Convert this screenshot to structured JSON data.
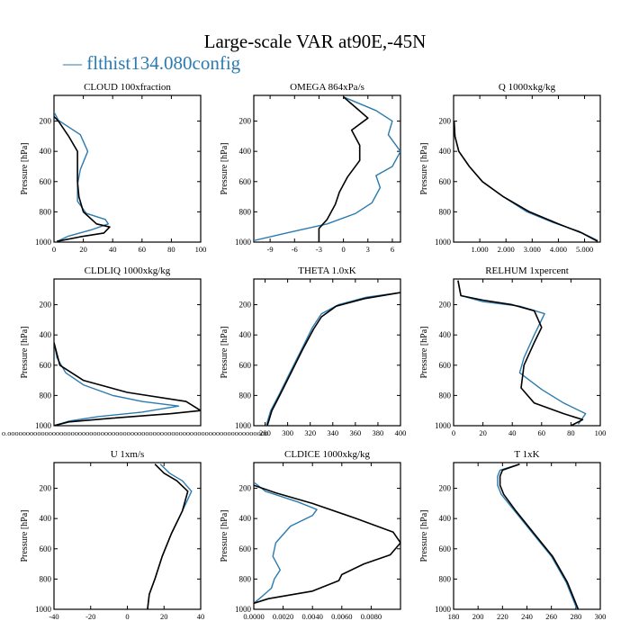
{
  "title": "Large-scale VAR at90E,-45N",
  "legend": {
    "marker": "—",
    "label": "flthist134.080config"
  },
  "colors": {
    "config": "#2b7bb0",
    "control": "#000000"
  },
  "chart_data": [
    {
      "type": "line",
      "title": "CLOUD  100xfraction",
      "ylabel": "Pressure [hPa]",
      "xlim": [
        0,
        100
      ],
      "ylim": [
        1000,
        30
      ],
      "xticks": [
        "0",
        "20",
        "40",
        "60",
        "80",
        "100"
      ],
      "xtick_values": [
        0,
        20,
        40,
        60,
        80,
        100
      ],
      "yticks": [
        "200",
        "400",
        "600",
        "800",
        "1000"
      ],
      "ytick_values": [
        200,
        400,
        600,
        800,
        1000
      ],
      "series": [
        {
          "key": "config",
          "name": "flthist134.080config",
          "x": [
            0,
            3,
            18,
            23,
            18,
            16,
            16,
            22,
            35,
            37,
            25,
            10,
            2
          ],
          "y": [
            140,
            195,
            290,
            400,
            520,
            620,
            730,
            810,
            850,
            880,
            920,
            960,
            995
          ]
        },
        {
          "key": "control",
          "x": [
            0,
            3,
            10,
            16,
            16,
            16,
            17,
            20,
            29,
            38,
            34,
            18,
            2
          ],
          "y": [
            170,
            200,
            300,
            400,
            500,
            600,
            700,
            800,
            880,
            900,
            940,
            965,
            995
          ]
        }
      ]
    },
    {
      "type": "line",
      "title": "OMEGA  864xPa/s",
      "ylabel": "Pressure [hPa]",
      "xlim": [
        -11,
        7
      ],
      "ylim": [
        1000,
        30
      ],
      "xticks": [
        "-9",
        "-6",
        "-3",
        "0",
        "3",
        "6"
      ],
      "xtick_values": [
        -9,
        -6,
        -3,
        0,
        3,
        6
      ],
      "yticks": [
        "200",
        "400",
        "600",
        "800",
        "1000"
      ],
      "ytick_values": [
        200,
        400,
        600,
        800,
        1000
      ],
      "series": [
        {
          "key": "config",
          "name": "flthist134.080config",
          "x": [
            0,
            4,
            6,
            5.5,
            7,
            6,
            4,
            4.5,
            3.5,
            1.5,
            -2,
            -7,
            -11
          ],
          "y": [
            40,
            130,
            200,
            290,
            400,
            500,
            560,
            640,
            740,
            810,
            880,
            940,
            990
          ]
        },
        {
          "key": "control",
          "x": [
            0,
            1.5,
            3,
            1,
            2,
            2,
            0.5,
            -0.5,
            -1,
            -2,
            -3,
            -3,
            -3
          ],
          "y": [
            40,
            110,
            180,
            260,
            360,
            460,
            570,
            670,
            750,
            850,
            910,
            960,
            1000
          ]
        }
      ]
    },
    {
      "type": "line",
      "title": "Q  1000xkg/kg",
      "ylabel": "Pressure [hPa]",
      "xlim": [
        0,
        5.6
      ],
      "ylim": [
        1000,
        30
      ],
      "xticks": [
        "1.000",
        "2.000",
        "3.000",
        "4.000",
        "5.000"
      ],
      "xtick_values": [
        1,
        2,
        3,
        4,
        5
      ],
      "yticks": [
        "200",
        "400",
        "600",
        "800",
        "1000"
      ],
      "ytick_values": [
        200,
        400,
        600,
        800,
        1000
      ],
      "series": [
        {
          "key": "config",
          "name": "flthist134.080config",
          "x": [
            0.02,
            0.05,
            0.2,
            0.6,
            1.1,
            1.9,
            2.8,
            3.8,
            4.8,
            5.5
          ],
          "y": [
            200,
            300,
            400,
            500,
            600,
            700,
            800,
            870,
            930,
            990
          ]
        },
        {
          "key": "control",
          "x": [
            0.02,
            0.05,
            0.2,
            0.6,
            1.1,
            1.9,
            2.9,
            4.0,
            4.9,
            5.5
          ],
          "y": [
            200,
            300,
            400,
            500,
            600,
            700,
            800,
            880,
            940,
            995
          ]
        }
      ]
    },
    {
      "type": "line",
      "title": "CLDLIQ  1000xkg/kg",
      "ylabel": "Pressure [hPa]",
      "xlim": [
        0,
        0.1
      ],
      "ylim": [
        1000,
        30
      ],
      "xticks": [
        "0.0000000000000000000000000000000000000000000000000000000000000000000000"
      ],
      "xtick_values": [
        0
      ],
      "yticks": [
        "200",
        "400",
        "600",
        "800",
        "1000"
      ],
      "ytick_values": [
        200,
        400,
        600,
        800,
        1000
      ],
      "series": [
        {
          "key": "config",
          "name": "flthist134.080config",
          "x": [
            0,
            0.002,
            0.008,
            0.02,
            0.04,
            0.06,
            0.085,
            0.06,
            0.03,
            0.01,
            0
          ],
          "y": [
            450,
            550,
            650,
            730,
            800,
            840,
            870,
            910,
            940,
            970,
            1000
          ]
        },
        {
          "key": "control",
          "x": [
            0,
            0.004,
            0.02,
            0.05,
            0.09,
            0.1,
            0.08,
            0.04,
            0.01,
            0
          ],
          "y": [
            450,
            600,
            700,
            780,
            840,
            900,
            920,
            950,
            975,
            1000
          ]
        }
      ]
    },
    {
      "type": "line",
      "title": "THETA  1.0xK",
      "ylabel": "Pressure [hPa]",
      "xlim": [
        270,
        400
      ],
      "ylim": [
        1000,
        30
      ],
      "xticks": [
        "280",
        "300",
        "320",
        "340",
        "360",
        "380",
        "400"
      ],
      "xtick_values": [
        280,
        300,
        320,
        340,
        360,
        380,
        400
      ],
      "yticks": [
        "200",
        "400",
        "600",
        "800",
        "1000"
      ],
      "ytick_values": [
        200,
        400,
        600,
        800,
        1000
      ],
      "series": [
        {
          "key": "config",
          "name": "flthist134.080config",
          "x": [
            400,
            370,
            345,
            330,
            322,
            312,
            302,
            292,
            285,
            281
          ],
          "y": [
            120,
            150,
            200,
            260,
            350,
            500,
            650,
            800,
            900,
            1000
          ]
        },
        {
          "key": "control",
          "x": [
            400,
            368,
            343,
            330,
            323,
            313,
            303,
            293,
            286,
            282
          ],
          "y": [
            120,
            160,
            210,
            280,
            360,
            500,
            650,
            800,
            900,
            1000
          ]
        }
      ]
    },
    {
      "type": "line",
      "title": "RELHUM  1xpercent",
      "ylabel": "Pressure [hPa]",
      "xlim": [
        0,
        100
      ],
      "ylim": [
        1000,
        30
      ],
      "xticks": [
        "0",
        "20",
        "40",
        "60",
        "80",
        "100"
      ],
      "xtick_values": [
        0,
        20,
        40,
        60,
        80,
        100
      ],
      "yticks": [
        "200",
        "400",
        "600",
        "800",
        "1000"
      ],
      "ytick_values": [
        200,
        400,
        600,
        800,
        1000
      ],
      "series": [
        {
          "key": "config",
          "name": "flthist134.080config",
          "x": [
            3,
            5,
            20,
            45,
            62,
            55,
            48,
            45,
            60,
            75,
            90,
            85
          ],
          "y": [
            40,
            140,
            180,
            210,
            260,
            400,
            550,
            650,
            760,
            850,
            920,
            990
          ]
        },
        {
          "key": "control",
          "x": [
            3,
            5,
            20,
            40,
            55,
            60,
            55,
            48,
            46,
            55,
            75,
            88,
            80
          ],
          "y": [
            40,
            140,
            170,
            200,
            240,
            350,
            450,
            600,
            750,
            850,
            920,
            960,
            1000
          ]
        }
      ]
    },
    {
      "type": "line",
      "title": "U  1xm/s",
      "ylabel": "Pressure [hPa]",
      "xlim": [
        -40,
        40
      ],
      "ylim": [
        1000,
        30
      ],
      "xticks": [
        "-40",
        "-20",
        "0",
        "20",
        "40"
      ],
      "xtick_values": [
        -40,
        -20,
        0,
        20,
        40
      ],
      "yticks": [
        "200",
        "400",
        "600",
        "800",
        "1000"
      ],
      "ytick_values": [
        200,
        400,
        600,
        800,
        1000
      ],
      "series": [
        {
          "key": "config",
          "name": "flthist134.080config",
          "x": [
            18,
            23,
            30,
            35,
            30,
            24,
            19,
            15,
            12,
            11
          ],
          "y": [
            40,
            100,
            150,
            220,
            350,
            500,
            650,
            800,
            900,
            1000
          ]
        },
        {
          "key": "control",
          "x": [
            15,
            20,
            27,
            33,
            30,
            24,
            19,
            15,
            12,
            11
          ],
          "y": [
            40,
            100,
            150,
            220,
            350,
            500,
            650,
            800,
            900,
            1000
          ]
        }
      ]
    },
    {
      "type": "line",
      "title": "CLDICE  1000xkg/kg",
      "ylabel": "Pressure [hPa]",
      "xlim": [
        0,
        0.01
      ],
      "ylim": [
        1000,
        30
      ],
      "xticks": [
        "0.0000",
        "0.0020",
        "0.0040",
        "0.0060",
        "0.0080"
      ],
      "xtick_values": [
        0,
        0.002,
        0.004,
        0.006,
        0.008
      ],
      "yticks": [
        "200",
        "400",
        "600",
        "800",
        "1000"
      ],
      "ytick_values": [
        200,
        400,
        600,
        800,
        1000
      ],
      "series": [
        {
          "key": "config",
          "name": "flthist134.080config",
          "x": [
            0,
            0.0008,
            0.003,
            0.0043,
            0.004,
            0.0025,
            0.0015,
            0.0013,
            0.0018,
            0.0014,
            0.0012,
            0.0005,
            0
          ],
          "y": [
            160,
            220,
            290,
            340,
            380,
            450,
            560,
            650,
            740,
            800,
            860,
            920,
            960
          ]
        },
        {
          "key": "control",
          "x": [
            0,
            0.0015,
            0.004,
            0.007,
            0.0095,
            0.01,
            0.0093,
            0.0075,
            0.006,
            0.0058,
            0.004,
            0.001,
            0
          ],
          "y": [
            180,
            230,
            300,
            400,
            490,
            560,
            640,
            700,
            770,
            810,
            880,
            930,
            960
          ]
        }
      ]
    },
    {
      "type": "line",
      "title": "T  1xK",
      "ylabel": "Pressure [hPa]",
      "xlim": [
        180,
        300
      ],
      "ylim": [
        1000,
        30
      ],
      "xticks": [
        "180",
        "200",
        "220",
        "240",
        "260",
        "280",
        "300"
      ],
      "xtick_values": [
        180,
        200,
        220,
        240,
        260,
        280,
        300
      ],
      "yticks": [
        "200",
        "400",
        "600",
        "800",
        "1000"
      ],
      "ytick_values": [
        200,
        400,
        600,
        800,
        1000
      ],
      "series": [
        {
          "key": "config",
          "name": "flthist134.080config",
          "x": [
            234,
            218,
            216,
            216,
            219,
            230,
            245,
            260,
            272,
            281
          ],
          "y": [
            40,
            80,
            120,
            180,
            240,
            350,
            500,
            650,
            820,
            1000
          ]
        },
        {
          "key": "control",
          "x": [
            234,
            220,
            218,
            218,
            221,
            231,
            246,
            261,
            273,
            282
          ],
          "y": [
            40,
            80,
            120,
            180,
            240,
            350,
            500,
            650,
            820,
            1000
          ]
        }
      ]
    }
  ]
}
